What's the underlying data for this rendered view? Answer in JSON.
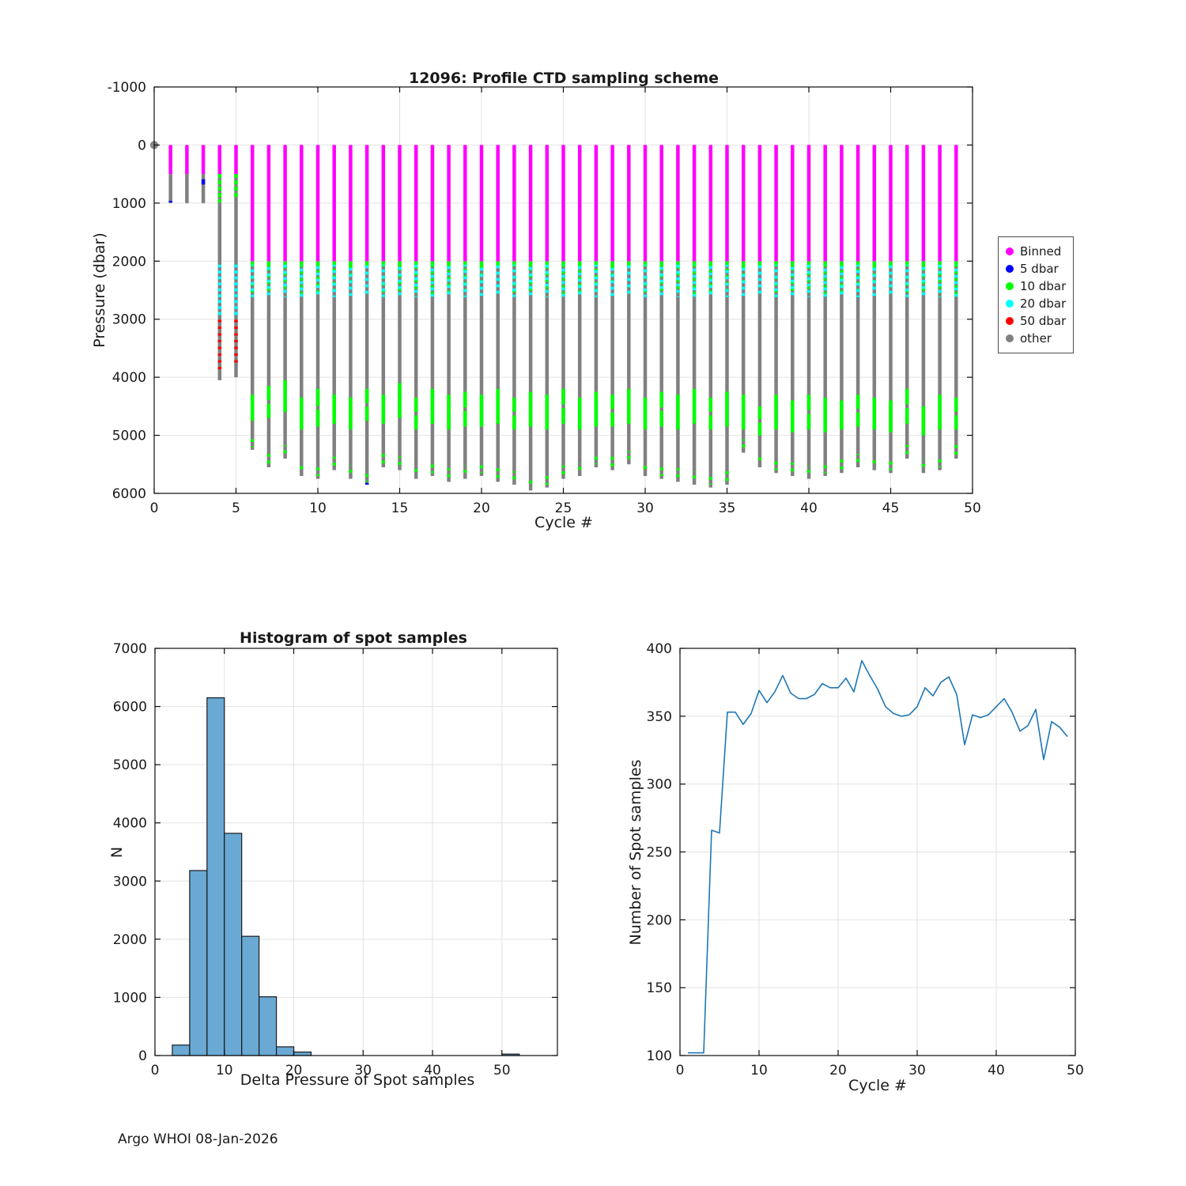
{
  "figure": {
    "footer": "Argo WHOI 08-Jan-2026"
  },
  "legend": {
    "items": [
      {
        "label": "Binned",
        "color": "#ff00ff"
      },
      {
        "label": "5 dbar",
        "color": "#0000ff"
      },
      {
        "label": "10 dbar",
        "color": "#00ff00"
      },
      {
        "label": "20 dbar",
        "color": "#00ffff"
      },
      {
        "label": "50 dbar",
        "color": "#ff0000"
      },
      {
        "label": "other",
        "color": "#808080"
      }
    ]
  },
  "charts": {
    "top": {
      "title": "12096: Profile CTD sampling scheme",
      "xlabel": "Cycle #",
      "ylabel": "Pressure (dbar)"
    },
    "hist": {
      "title": "Histogram of spot samples",
      "xlabel": "Delta Pressure of Spot samples",
      "ylabel": "N"
    },
    "line": {
      "xlabel": "Cycle #",
      "ylabel": "Number of Spot samples"
    }
  },
  "chart_data": [
    {
      "type": "scatter",
      "name": "profile-ctd-sampling-scheme",
      "title": "12096: Profile CTD sampling scheme",
      "xlabel": "Cycle #",
      "ylabel": "Pressure (dbar)",
      "xlim": [
        0,
        50
      ],
      "ylim": [
        -1000,
        6000
      ],
      "y_inverted": true,
      "grid": true,
      "xticks": [
        0,
        5,
        10,
        15,
        20,
        25,
        30,
        35,
        40,
        45,
        50
      ],
      "yticks": [
        -1000,
        0,
        1000,
        2000,
        3000,
        4000,
        5000,
        6000
      ],
      "colors": {
        "binned": "#ff00ff",
        "d5": "#0000ff",
        "d10": "#00ff00",
        "d20": "#00ffff",
        "d50": "#ff0000",
        "other": "#808080"
      },
      "origin_marker": {
        "x": 0,
        "y": 0,
        "color": "#8c8c8c"
      },
      "cycles": [
        {
          "x": 1,
          "m": 500,
          "b": 1000,
          "blue": [
            960,
            990
          ]
        },
        {
          "x": 2,
          "m": 500,
          "b": 1000
        },
        {
          "x": 3,
          "m": 500,
          "b": 1000,
          "blue": [
            590,
            680
          ]
        },
        {
          "x": 4,
          "m": 500,
          "b": 4050,
          "gTop": [
            500,
            990
          ],
          "cyanTop": [
            2060,
            2980
          ],
          "red": [
            3010,
            3870
          ]
        },
        {
          "x": 5,
          "m": 500,
          "b": 4000,
          "gTop": [
            500,
            900
          ],
          "cyanTop": [
            2060,
            2980
          ],
          "red": [
            3010,
            3800
          ]
        },
        {
          "x": 6,
          "m": 2000,
          "b": 5250,
          "g": [
            4300,
            4750
          ]
        },
        {
          "x": 7,
          "m": 2000,
          "b": 5550,
          "g": [
            4150,
            4700
          ]
        },
        {
          "x": 8,
          "m": 2000,
          "b": 5400,
          "g": [
            4050,
            4600
          ]
        },
        {
          "x": 9,
          "m": 2000,
          "b": 5700,
          "g": [
            4350,
            4900
          ]
        },
        {
          "x": 10,
          "m": 2000,
          "b": 5750,
          "g": [
            4200,
            4850
          ]
        },
        {
          "x": 11,
          "m": 2000,
          "b": 5600,
          "g": [
            4300,
            4800
          ]
        },
        {
          "x": 12,
          "m": 2000,
          "b": 5750,
          "g": [
            4350,
            4900
          ]
        },
        {
          "x": 13,
          "m": 2000,
          "b": 5850,
          "g": [
            4200,
            4750
          ],
          "blue": [
            5820,
            5850
          ]
        },
        {
          "x": 14,
          "m": 2000,
          "b": 5550,
          "g": [
            4300,
            4800
          ]
        },
        {
          "x": 15,
          "m": 2000,
          "b": 5600,
          "g": [
            4100,
            4700
          ]
        },
        {
          "x": 16,
          "m": 2000,
          "b": 5750,
          "g": [
            4350,
            4900
          ]
        },
        {
          "x": 17,
          "m": 2000,
          "b": 5700,
          "g": [
            4200,
            4800
          ]
        },
        {
          "x": 18,
          "m": 2000,
          "b": 5800,
          "g": [
            4300,
            4900
          ]
        },
        {
          "x": 19,
          "m": 2000,
          "b": 5750,
          "g": [
            4250,
            4850
          ]
        },
        {
          "x": 20,
          "m": 2000,
          "b": 5700,
          "g": [
            4300,
            4850
          ]
        },
        {
          "x": 21,
          "m": 2000,
          "b": 5800,
          "g": [
            4200,
            4800
          ]
        },
        {
          "x": 22,
          "m": 2000,
          "b": 5850,
          "g": [
            4350,
            4900
          ]
        },
        {
          "x": 23,
          "m": 2000,
          "b": 5950,
          "g": [
            4250,
            4850
          ]
        },
        {
          "x": 24,
          "m": 2000,
          "b": 5900,
          "g": [
            4300,
            4900
          ]
        },
        {
          "x": 25,
          "m": 2000,
          "b": 5750,
          "g": [
            4200,
            4800
          ]
        },
        {
          "x": 26,
          "m": 2000,
          "b": 5700,
          "g": [
            4350,
            4900
          ]
        },
        {
          "x": 27,
          "m": 2000,
          "b": 5550,
          "g": [
            4250,
            4850
          ]
        },
        {
          "x": 28,
          "m": 2000,
          "b": 5600,
          "g": [
            4300,
            4850
          ]
        },
        {
          "x": 29,
          "m": 2000,
          "b": 5500,
          "g": [
            4200,
            4800
          ]
        },
        {
          "x": 30,
          "m": 2000,
          "b": 5700,
          "g": [
            4350,
            4900
          ]
        },
        {
          "x": 31,
          "m": 2000,
          "b": 5750,
          "g": [
            4250,
            4850
          ]
        },
        {
          "x": 32,
          "m": 2000,
          "b": 5800,
          "g": [
            4300,
            4900
          ]
        },
        {
          "x": 33,
          "m": 2000,
          "b": 5850,
          "g": [
            4200,
            4800
          ]
        },
        {
          "x": 34,
          "m": 2000,
          "b": 5900,
          "g": [
            4350,
            4900
          ]
        },
        {
          "x": 35,
          "m": 2000,
          "b": 5850,
          "g": [
            4250,
            4850
          ]
        },
        {
          "x": 36,
          "m": 2000,
          "b": 5300,
          "g": [
            4300,
            4900
          ]
        },
        {
          "x": 37,
          "m": 2000,
          "b": 5550,
          "g": [
            4500,
            5000
          ]
        },
        {
          "x": 38,
          "m": 2000,
          "b": 5650,
          "g": [
            4300,
            4900
          ]
        },
        {
          "x": 39,
          "m": 2000,
          "b": 5700,
          "g": [
            4400,
            4950
          ]
        },
        {
          "x": 40,
          "m": 2000,
          "b": 5750,
          "g": [
            4300,
            4900
          ]
        },
        {
          "x": 41,
          "m": 2000,
          "b": 5700,
          "g": [
            4350,
            4950
          ]
        },
        {
          "x": 42,
          "m": 2000,
          "b": 5650,
          "g": [
            4400,
            4900
          ]
        },
        {
          "x": 43,
          "m": 2000,
          "b": 5550,
          "g": [
            4300,
            4850
          ]
        },
        {
          "x": 44,
          "m": 2000,
          "b": 5600,
          "g": [
            4350,
            4900
          ]
        },
        {
          "x": 45,
          "m": 2000,
          "b": 5650,
          "g": [
            4400,
            4950
          ]
        },
        {
          "x": 46,
          "m": 2000,
          "b": 5400,
          "g": [
            4200,
            4800
          ]
        },
        {
          "x": 47,
          "m": 2000,
          "b": 5650,
          "g": [
            4500,
            5000
          ]
        },
        {
          "x": 48,
          "m": 2000,
          "b": 5600,
          "g": [
            4300,
            4900
          ]
        },
        {
          "x": 49,
          "m": 2000,
          "b": 5400,
          "g": [
            4350,
            4900
          ]
        }
      ]
    },
    {
      "type": "bar",
      "name": "histogram-of-spot-samples",
      "title": "Histogram of spot samples",
      "xlabel": "Delta Pressure of Spot samples",
      "ylabel": "N",
      "xlim": [
        0,
        58
      ],
      "ylim": [
        0,
        7000
      ],
      "grid": true,
      "xticks": [
        0,
        10,
        20,
        30,
        40,
        50
      ],
      "yticks": [
        0,
        1000,
        2000,
        3000,
        4000,
        5000,
        6000,
        7000
      ],
      "bar_color": "#69a9d4",
      "bar_edge": "#1a1a1a",
      "bars": [
        {
          "x0": 2.5,
          "x1": 5.0,
          "n": 180
        },
        {
          "x0": 5.0,
          "x1": 7.5,
          "n": 3180
        },
        {
          "x0": 7.5,
          "x1": 10.0,
          "n": 6150
        },
        {
          "x0": 10.0,
          "x1": 12.5,
          "n": 3820
        },
        {
          "x0": 12.5,
          "x1": 15.0,
          "n": 2050
        },
        {
          "x0": 15.0,
          "x1": 17.5,
          "n": 1010
        },
        {
          "x0": 17.5,
          "x1": 20.0,
          "n": 150
        },
        {
          "x0": 20.0,
          "x1": 22.5,
          "n": 60
        },
        {
          "x0": 50.0,
          "x1": 52.5,
          "n": 25
        }
      ]
    },
    {
      "type": "line",
      "name": "number-of-spot-samples-per-cycle",
      "xlabel": "Cycle #",
      "ylabel": "Number of Spot samples",
      "xlim": [
        0,
        50
      ],
      "ylim": [
        100,
        400
      ],
      "grid": true,
      "xticks": [
        0,
        10,
        20,
        30,
        40,
        50
      ],
      "yticks": [
        100,
        150,
        200,
        250,
        300,
        350,
        400
      ],
      "line_color": "#1f77b4",
      "x": [
        1,
        2,
        3,
        4,
        5,
        6,
        7,
        8,
        9,
        10,
        11,
        12,
        13,
        14,
        15,
        16,
        17,
        18,
        19,
        20,
        21,
        22,
        23,
        24,
        25,
        26,
        27,
        28,
        29,
        30,
        31,
        32,
        33,
        34,
        35,
        36,
        37,
        38,
        39,
        40,
        41,
        42,
        43,
        44,
        45,
        46,
        47,
        48,
        49
      ],
      "values": [
        102,
        102,
        102,
        266,
        264,
        353,
        353,
        344,
        352,
        369,
        360,
        368,
        380,
        367,
        363,
        363,
        366,
        374,
        371,
        371,
        378,
        368,
        391,
        380,
        370,
        357,
        352,
        350,
        351,
        357,
        371,
        365,
        375,
        379,
        366,
        329,
        351,
        349,
        351,
        357,
        363,
        353,
        339,
        343,
        355,
        318,
        346,
        342,
        335
      ]
    }
  ]
}
